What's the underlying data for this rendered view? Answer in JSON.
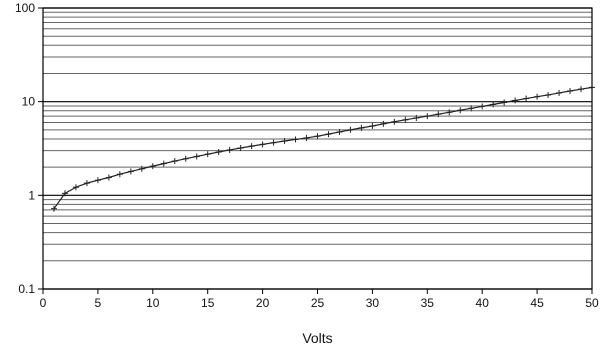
{
  "chart_data": {
    "type": "line",
    "title": "",
    "xlabel": "Volts",
    "ylabel": "",
    "xlim": [
      0,
      50
    ],
    "ylim": [
      0.1,
      100
    ],
    "y_scale": "log",
    "x_tick_labels": [
      "0",
      "5",
      "10",
      "15",
      "20",
      "25",
      "30",
      "35",
      "40",
      "45",
      "50"
    ],
    "y_tick_labels": [
      "0.1",
      "1",
      "10",
      "100"
    ],
    "grid": {
      "x": false,
      "y": true
    },
    "legend": "none",
    "series": [
      {
        "x": [
          1,
          2,
          3,
          4,
          5,
          6,
          7,
          8,
          9,
          10,
          11,
          12,
          13,
          14,
          15,
          16,
          17,
          18,
          19,
          20,
          21,
          22,
          23,
          24,
          25,
          26,
          27,
          28,
          29,
          30,
          31,
          32,
          33,
          34,
          35,
          36,
          37,
          38,
          39,
          40,
          41,
          42,
          43,
          44,
          45,
          46,
          47,
          48,
          49,
          50
        ],
        "values": [
          0.72,
          1.05,
          1.22,
          1.35,
          1.45,
          1.55,
          1.68,
          1.8,
          1.92,
          2.05,
          2.18,
          2.32,
          2.46,
          2.6,
          2.75,
          2.9,
          3.05,
          3.2,
          3.35,
          3.5,
          3.65,
          3.8,
          3.95,
          4.1,
          4.28,
          4.5,
          4.75,
          5.0,
          5.25,
          5.5,
          5.8,
          6.1,
          6.4,
          6.7,
          7.0,
          7.35,
          7.7,
          8.1,
          8.5,
          8.9,
          9.35,
          9.8,
          10.3,
          10.8,
          11.3,
          11.8,
          12.4,
          13.0,
          13.6,
          14.2
        ]
      }
    ],
    "colors": {
      "line": "#222222",
      "grid_major": "#000000",
      "grid_minor": "#555555",
      "text": "#111111"
    }
  }
}
